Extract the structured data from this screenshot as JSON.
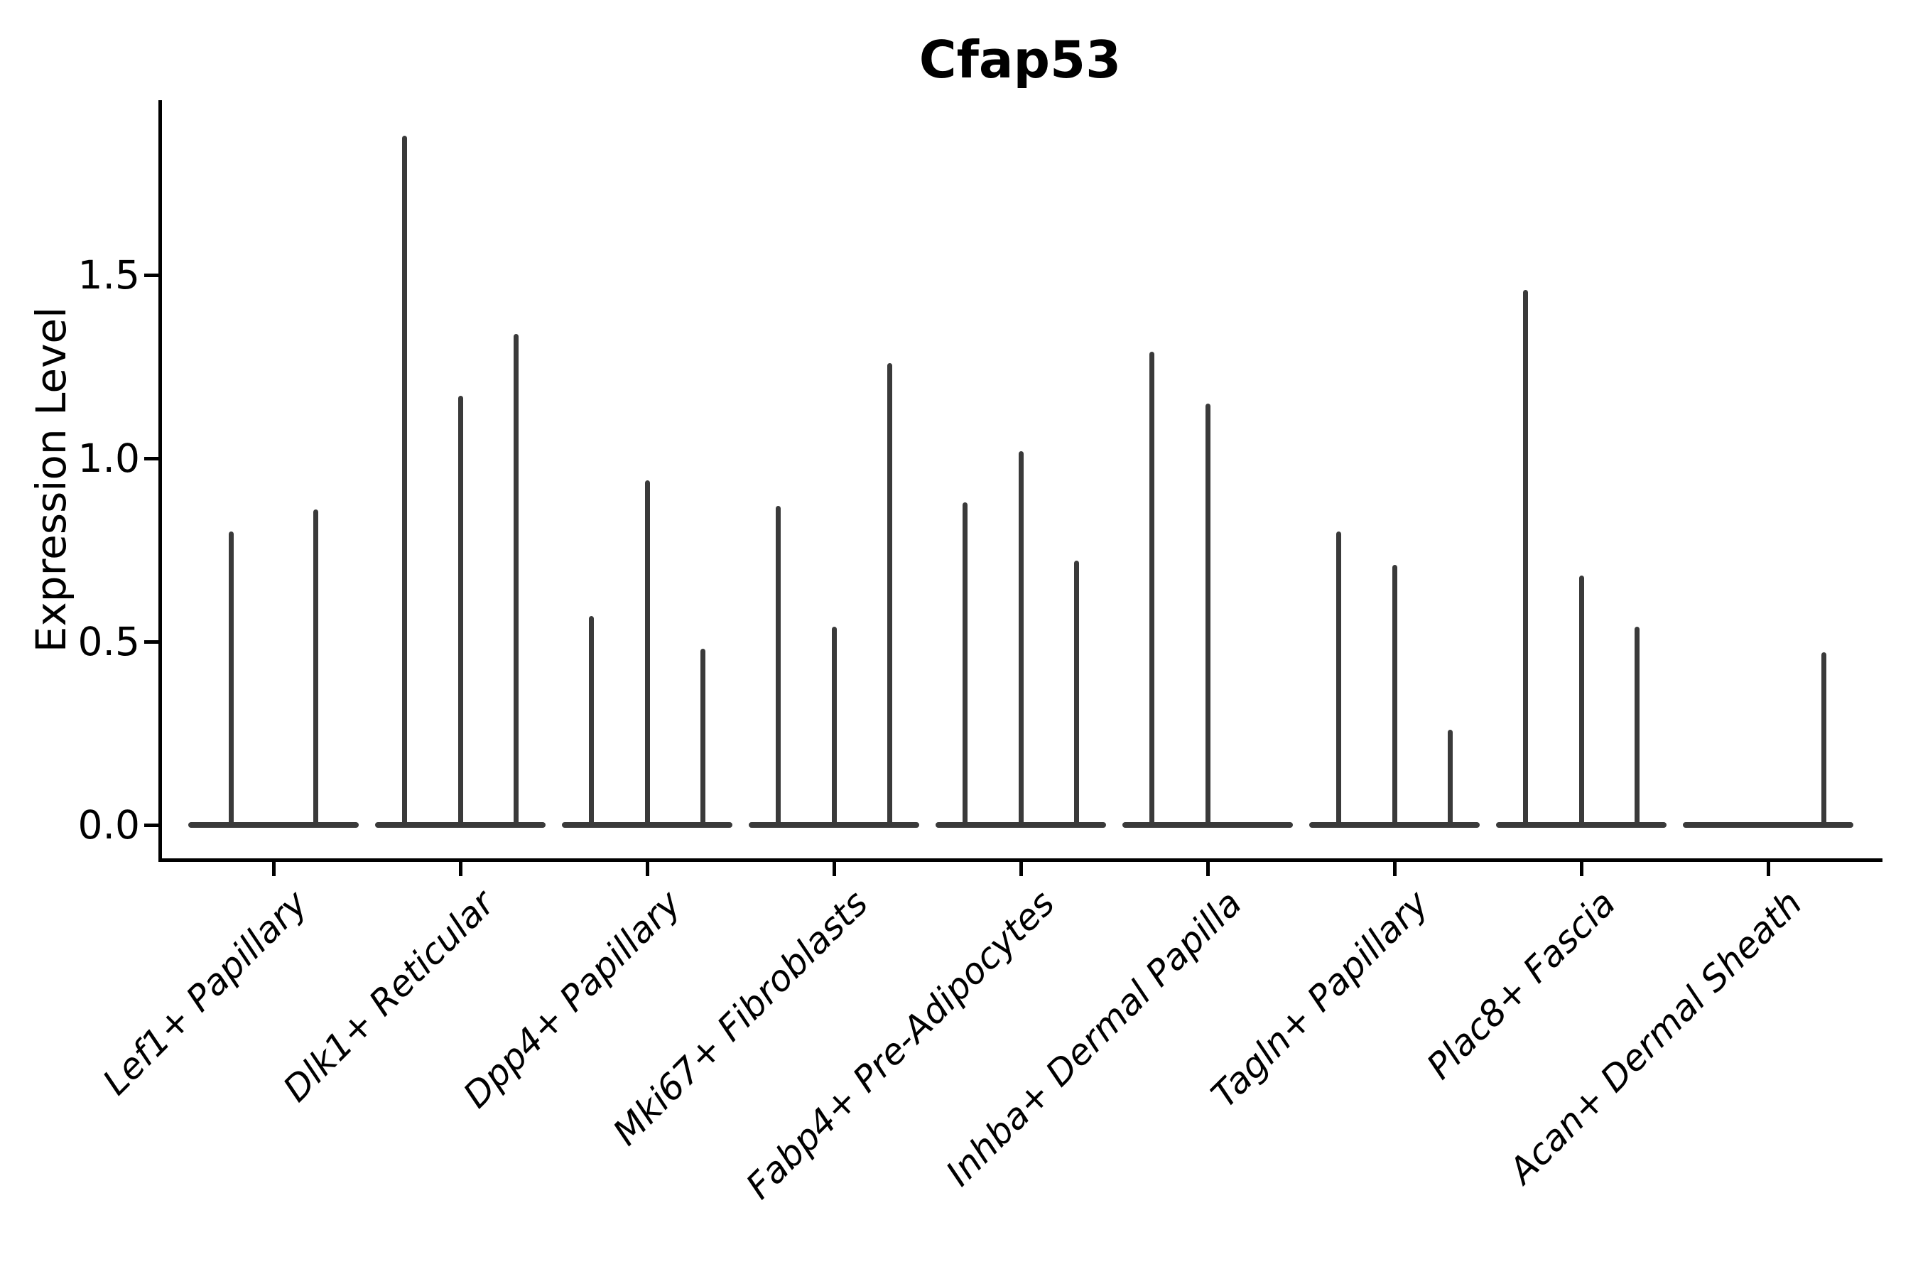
{
  "title": "Cfap53",
  "y_axis": {
    "label": "Expression Level",
    "tick_labels": [
      "0.0",
      "0.5",
      "1.0",
      "1.5"
    ],
    "tick_values": [
      0.0,
      0.5,
      1.0,
      1.5
    ]
  },
  "colors": {
    "violin": "#3a3a3a",
    "axis": "#000000",
    "text": "#000000",
    "background": "#ffffff"
  },
  "chart_data": {
    "type": "violin",
    "title": "Cfap53",
    "xlabel": "",
    "ylabel": "Expression Level",
    "ylim": [
      0,
      1.98
    ],
    "ytick_values": [
      0.0,
      0.5,
      1.0,
      1.5
    ],
    "ytick_labels": [
      "0.0",
      "0.5",
      "1.0",
      "1.5"
    ],
    "grid": false,
    "legend": false,
    "description": "Violin plot of Cfap53 expression; each cluster holds up to 3 narrow violins (spikes) whose bulk sits at 0 (wide flat base). pos is the violin offset within the cluster (fraction of cluster spacing); peak is the maximum expression reached by the spike.",
    "groups": [
      {
        "category": "Lef1+ Papillary",
        "spikes": [
          {
            "pos": -0.225,
            "peak": 0.8
          },
          {
            "pos": 0.225,
            "peak": 0.86
          }
        ]
      },
      {
        "category": "Dlk1+ Reticular",
        "spikes": [
          {
            "pos": -0.3,
            "peak": 1.88
          },
          {
            "pos": 0.0,
            "peak": 1.17
          },
          {
            "pos": 0.3,
            "peak": 1.34
          }
        ]
      },
      {
        "category": "Dpp4+ Papillary",
        "spikes": [
          {
            "pos": -0.3,
            "peak": 0.57
          },
          {
            "pos": 0.0,
            "peak": 0.94
          },
          {
            "pos": 0.3,
            "peak": 0.48
          }
        ]
      },
      {
        "category": "Mki67+ Fibroblasts",
        "spikes": [
          {
            "pos": -0.3,
            "peak": 0.87
          },
          {
            "pos": 0.0,
            "peak": 0.54
          },
          {
            "pos": 0.3,
            "peak": 1.26
          }
        ]
      },
      {
        "category": "Fabp4+ Pre-Adipocytes",
        "spikes": [
          {
            "pos": -0.3,
            "peak": 0.88
          },
          {
            "pos": 0.0,
            "peak": 1.02
          },
          {
            "pos": 0.3,
            "peak": 0.72
          }
        ]
      },
      {
        "category": "Inhba+ Dermal Papilla",
        "spikes": [
          {
            "pos": -0.3,
            "peak": 1.29
          },
          {
            "pos": 0.0,
            "peak": 1.15
          }
        ]
      },
      {
        "category": "Tagln+ Papillary",
        "spikes": [
          {
            "pos": -0.3,
            "peak": 0.8
          },
          {
            "pos": 0.0,
            "peak": 0.71
          },
          {
            "pos": 0.3,
            "peak": 0.26
          }
        ]
      },
      {
        "category": "Plac8+ Fascia",
        "spikes": [
          {
            "pos": -0.3,
            "peak": 1.46
          },
          {
            "pos": 0.0,
            "peak": 0.68
          },
          {
            "pos": 0.3,
            "peak": 0.54
          }
        ]
      },
      {
        "category": "Acan+ Dermal Sheath",
        "spikes": [
          {
            "pos": 0.3,
            "peak": 0.47
          }
        ]
      }
    ]
  }
}
